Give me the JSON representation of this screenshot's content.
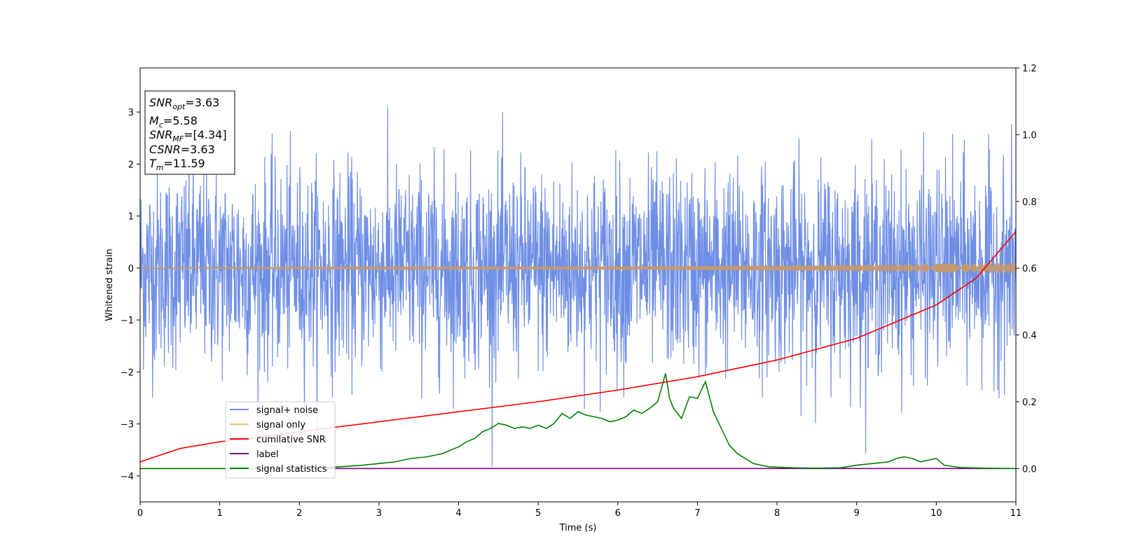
{
  "chart_data": {
    "type": "line",
    "xlabel": "Time (s)",
    "ylabel": "Whitened strain",
    "xlim": [
      0,
      11
    ],
    "ylim_left": [
      -4.5,
      3.85
    ],
    "ylim_right": [
      -0.1,
      1.2
    ],
    "grid": false,
    "legend_placement": "lower-left",
    "x_ticks": [
      "0",
      "1",
      "2",
      "3",
      "4",
      "5",
      "6",
      "7",
      "8",
      "9",
      "10",
      "11"
    ],
    "y_ticks_left": [
      "3",
      "2",
      "1",
      "0",
      "−1",
      "−2",
      "−3",
      "−4"
    ],
    "y_ticks_right": [
      "1.2",
      "1.0",
      "0.8",
      "0.6",
      "0.4",
      "0.2",
      "0.0"
    ],
    "annotation": {
      "snr_opt_label": "SNR",
      "snr_opt_sub": "opt",
      "snr_opt_value": "=3.63",
      "mc_label": "M",
      "mc_sub": "c",
      "mc_value": "=5.58",
      "snr_mf_label": "SNR",
      "snr_mf_sub": "MF",
      "snr_mf_value": "=[4.34]",
      "csnr_label": "CSNR",
      "csnr_value": "=3.63",
      "tm_label": "T",
      "tm_sub": "m",
      "tm_value": "=11.59"
    },
    "series": [
      {
        "name": "signal+ noise",
        "color": "#6f8fe6",
        "axis": "left",
        "noise_std": 1.0,
        "range": [
          -4.2,
          3.45
        ]
      },
      {
        "name": "signal only",
        "color": "#f5c36a",
        "axis": "left",
        "amplitude_start": 0.02,
        "amplitude_end": 0.1
      },
      {
        "name": "cumilative SNR",
        "color": "#ff0000",
        "axis": "right",
        "x": [
          0,
          0.5,
          1,
          2,
          3,
          4,
          5,
          6,
          7,
          8,
          9,
          10,
          10.5,
          11
        ],
        "y": [
          0.02,
          0.06,
          0.08,
          0.11,
          0.14,
          0.17,
          0.2,
          0.235,
          0.275,
          0.325,
          0.39,
          0.49,
          0.57,
          0.71
        ]
      },
      {
        "name": "label",
        "color": "#800080",
        "axis": "right",
        "x": [
          0,
          11
        ],
        "y": [
          0.0,
          0.0
        ]
      },
      {
        "name": "signal statistics",
        "color": "#008000",
        "axis": "right",
        "x": [
          0,
          2,
          2.5,
          2.8,
          3.0,
          3.2,
          3.4,
          3.6,
          3.8,
          4.0,
          4.1,
          4.2,
          4.3,
          4.4,
          4.5,
          4.6,
          4.7,
          4.8,
          4.9,
          5.0,
          5.1,
          5.2,
          5.3,
          5.4,
          5.5,
          5.6,
          5.7,
          5.8,
          5.9,
          6.0,
          6.1,
          6.2,
          6.3,
          6.4,
          6.5,
          6.6,
          6.65,
          6.7,
          6.8,
          6.9,
          7.0,
          7.1,
          7.2,
          7.3,
          7.4,
          7.5,
          7.7,
          7.9,
          8.2,
          8.5,
          8.8,
          9.0,
          9.2,
          9.4,
          9.5,
          9.6,
          9.7,
          9.8,
          9.9,
          10.0,
          10.1,
          10.3,
          10.6,
          11.0
        ],
        "y": [
          0.0,
          0.0,
          0.005,
          0.01,
          0.015,
          0.02,
          0.03,
          0.035,
          0.045,
          0.065,
          0.08,
          0.09,
          0.11,
          0.12,
          0.135,
          0.13,
          0.12,
          0.125,
          0.12,
          0.13,
          0.12,
          0.135,
          0.165,
          0.15,
          0.17,
          0.16,
          0.155,
          0.15,
          0.14,
          0.145,
          0.155,
          0.175,
          0.165,
          0.18,
          0.2,
          0.285,
          0.21,
          0.18,
          0.15,
          0.215,
          0.21,
          0.26,
          0.17,
          0.12,
          0.07,
          0.045,
          0.015,
          0.005,
          0.002,
          0.001,
          0.002,
          0.01,
          0.015,
          0.02,
          0.03,
          0.035,
          0.03,
          0.02,
          0.025,
          0.03,
          0.01,
          0.003,
          0.001,
          0.0
        ]
      }
    ]
  }
}
